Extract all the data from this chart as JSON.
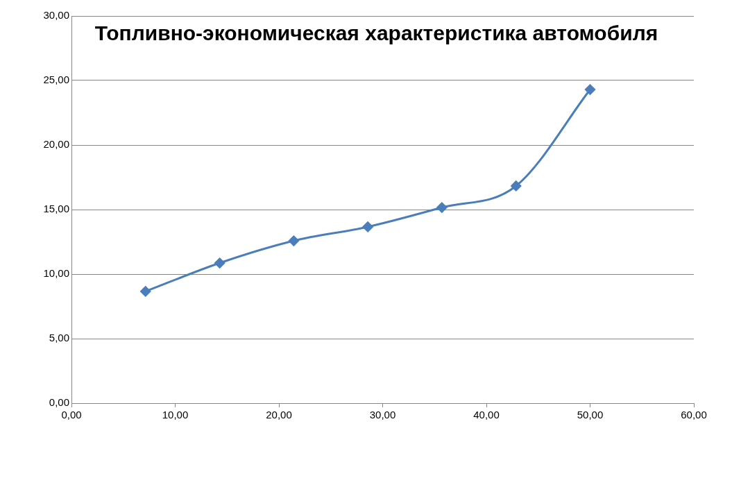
{
  "chart_data": {
    "type": "line",
    "title": "Топливно-экономическая характеристика автомобиля",
    "x": [
      7.14,
      14.29,
      21.43,
      28.57,
      35.71,
      42.86,
      50
    ],
    "series": [
      {
        "color": "#4a7ebb",
        "values": [
          8.66,
          10.86,
          12.58,
          13.66,
          15.16,
          16.83,
          24.3
        ]
      }
    ],
    "xlim": [
      0,
      60
    ],
    "xticks": [
      {
        "value": 0,
        "label": "0,00"
      },
      {
        "value": 10,
        "label": "10,00"
      },
      {
        "value": 20,
        "label": "20,00"
      },
      {
        "value": 30,
        "label": "30,00"
      },
      {
        "value": 40,
        "label": "40,00"
      },
      {
        "value": 50,
        "label": "50,00"
      },
      {
        "value": 60,
        "label": "60,00"
      }
    ],
    "ylim": [
      0,
      30
    ],
    "yticks": [
      {
        "value": 0,
        "label": "0,00"
      },
      {
        "value": 5,
        "label": "5,00"
      },
      {
        "value": 10,
        "label": "10,00"
      },
      {
        "value": 15,
        "label": "15,00"
      },
      {
        "value": 20,
        "label": "20,00"
      },
      {
        "value": 25,
        "label": "25,00"
      },
      {
        "value": 30,
        "label": "30,00"
      }
    ],
    "grid": "y",
    "legend": false,
    "marker": "diamond",
    "line_style": "solid"
  }
}
